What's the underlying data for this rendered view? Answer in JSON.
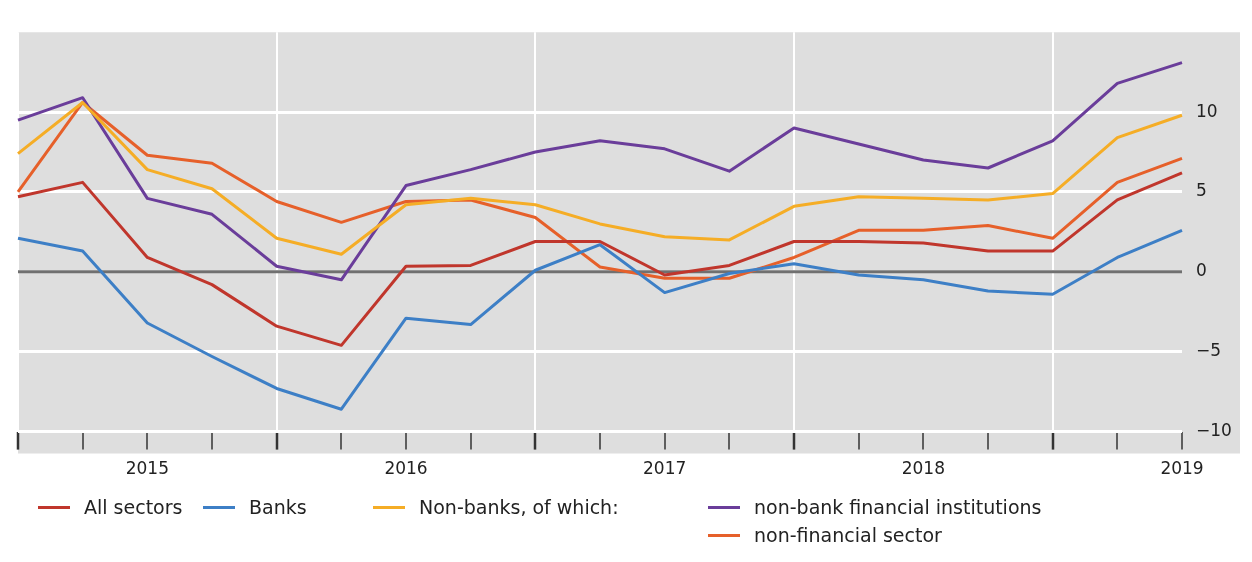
{
  "chart_data": {
    "type": "line",
    "categories": [
      null,
      null,
      "2015",
      null,
      null,
      null,
      "2016",
      null,
      null,
      null,
      "2017",
      null,
      null,
      null,
      "2018",
      null,
      null,
      null,
      "2019"
    ],
    "series": [
      {
        "name": "All sectors",
        "color": "#c0362c",
        "values": [
          4.7,
          5.6,
          0.9,
          -0.8,
          -3.4,
          -4.6,
          0.35,
          0.4,
          1.9,
          1.9,
          -0.2,
          0.4,
          1.9,
          1.9,
          1.8,
          1.3,
          1.3,
          4.5,
          6.2
        ]
      },
      {
        "name": "Banks",
        "color": "#3d7fc6",
        "values": [
          2.1,
          1.3,
          -3.2,
          -5.3,
          -7.3,
          -8.6,
          -2.9,
          -3.3,
          0.1,
          1.7,
          -1.3,
          -0.1,
          0.5,
          -0.2,
          -0.5,
          -1.2,
          -1.4,
          0.9,
          2.6
        ]
      },
      {
        "name": "Non-banks, of which:",
        "color": "#f5ad26",
        "values": [
          7.4,
          10.6,
          6.4,
          5.2,
          2.1,
          1.1,
          4.2,
          4.6,
          4.2,
          3.0,
          2.2,
          2.0,
          4.1,
          4.7,
          4.6,
          4.5,
          4.9,
          8.4,
          9.8
        ]
      },
      {
        "name": "non-bank financial institutions",
        "color": "#6a3d9a",
        "values": [
          9.5,
          10.9,
          4.6,
          3.6,
          0.35,
          -0.5,
          5.4,
          6.4,
          7.5,
          8.2,
          7.7,
          6.3,
          9.0,
          8.0,
          7.0,
          6.5,
          8.2,
          11.8,
          13.1
        ]
      },
      {
        "name": "non-financial sector",
        "color": "#e6602a",
        "values": [
          5.0,
          10.6,
          7.3,
          6.8,
          4.4,
          3.1,
          4.4,
          4.5,
          3.4,
          0.3,
          -0.4,
          -0.4,
          0.9,
          2.6,
          2.6,
          2.9,
          2.1,
          5.6,
          7.1
        ]
      }
    ],
    "ylim": [
      -10,
      15
    ],
    "yticks": [
      -10,
      -5,
      0,
      5,
      10
    ],
    "ref_lines": [
      {
        "axis": "y",
        "value": 0,
        "color": "#707070"
      }
    ],
    "grid": true,
    "legend": "bottom",
    "marker": "none",
    "line_style": "solid"
  }
}
